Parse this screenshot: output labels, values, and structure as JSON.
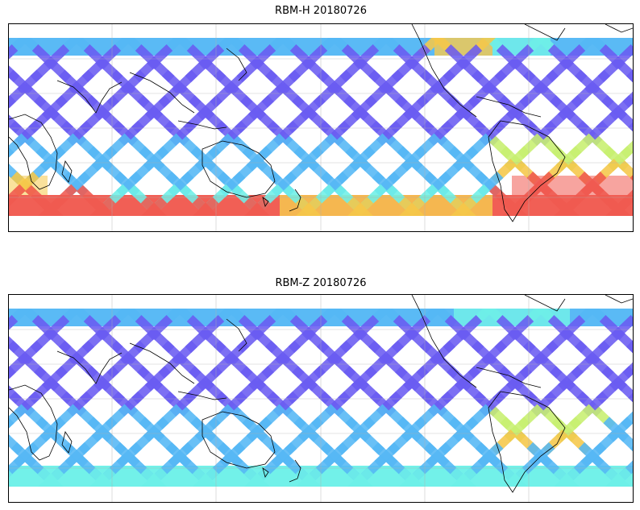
{
  "figure": {
    "panels": [
      {
        "title": "RBM-H 20180726",
        "colormap": "jet (translucent)",
        "layers": [
          "swath-diagonals",
          "coastlines",
          "gridlines"
        ],
        "high_value_regions": [
          "southern-high-latitudes",
          "south-atlantic",
          "north-atlantic-arctic-edge"
        ]
      },
      {
        "title": "RBM-Z 20180726",
        "colormap": "jet (translucent)",
        "layers": [
          "swath-diagonals",
          "coastlines",
          "gridlines"
        ],
        "high_value_regions": [
          "south-atlantic-off-brazil"
        ]
      }
    ],
    "colors": {
      "low": "#6a5cf2",
      "mid_low": "#55b8f5",
      "mid": "#6ef0e8",
      "mid_high": "#c8f070",
      "high": "#f5c84a",
      "very_high": "#f05a50",
      "coastline": "#000000",
      "grid": "#b0b0b0"
    }
  }
}
